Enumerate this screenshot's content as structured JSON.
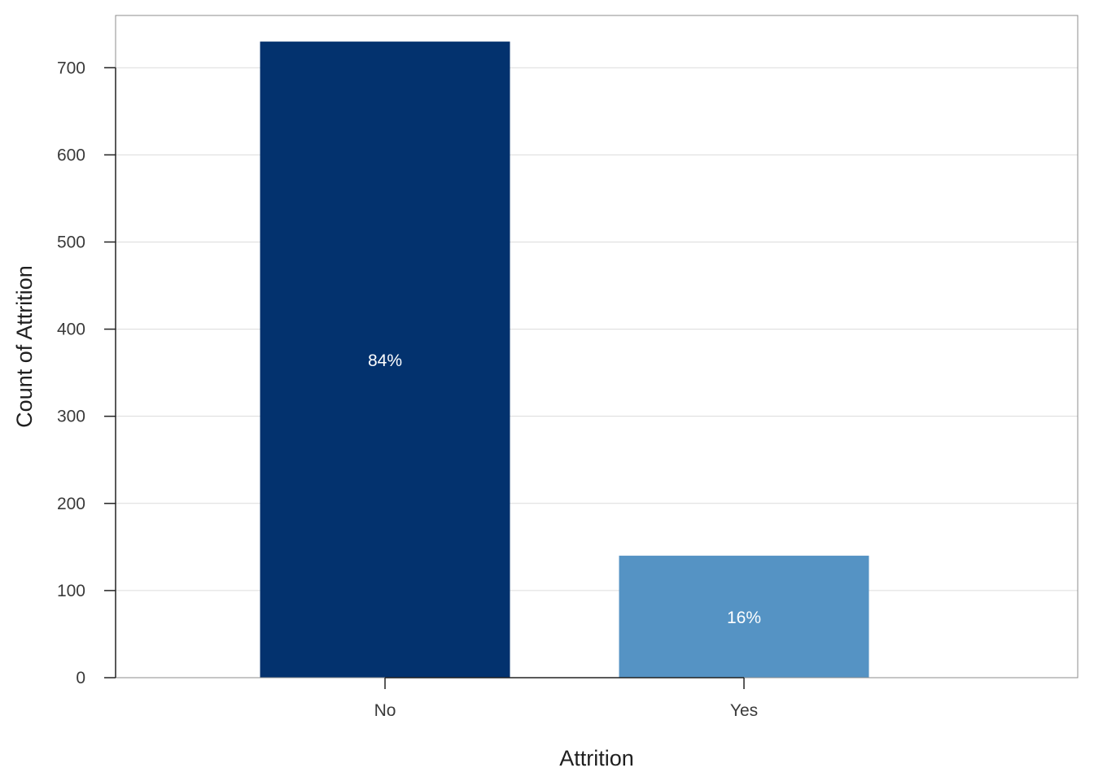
{
  "chart_data": {
    "type": "bar",
    "categories": [
      "No",
      "Yes"
    ],
    "values": [
      730,
      140
    ],
    "bar_labels": [
      "84%",
      "16%"
    ],
    "bar_colors": [
      "#03326e",
      "#5593c4"
    ],
    "xlabel": "Attrition",
    "ylabel": "Count of Attrition",
    "ylim": [
      0,
      760
    ],
    "yticks": [
      0,
      100,
      200,
      300,
      400,
      500,
      600,
      700
    ],
    "grid": "horizontal",
    "legend": "none"
  }
}
